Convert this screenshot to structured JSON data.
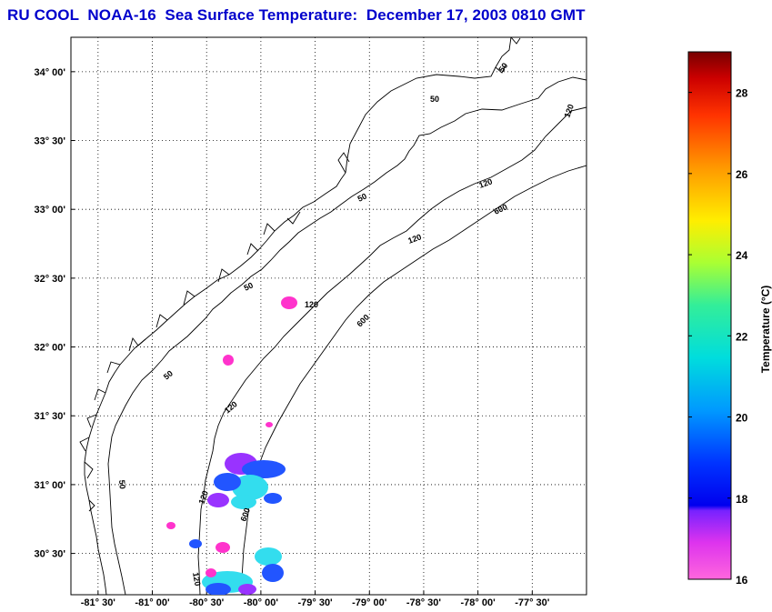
{
  "title": "RU COOL  NOAA-16  Sea Surface Temperature:  December 17, 2003 0810 GMT",
  "map": {
    "lon_range": [
      -81.75,
      -77
    ],
    "lat_range": [
      30.2,
      34.25
    ],
    "lon_ticks": [
      {
        "value": -81.5,
        "label": "-81° 30'"
      },
      {
        "value": -81.0,
        "label": "-81° 00'"
      },
      {
        "value": -80.5,
        "label": "-80° 30'"
      },
      {
        "value": -80.0,
        "label": "-80° 00'"
      },
      {
        "value": -79.5,
        "label": "-79° 30'"
      },
      {
        "value": -79.0,
        "label": "-79° 00'"
      },
      {
        "value": -78.5,
        "label": "-78° 30'"
      },
      {
        "value": -78.0,
        "label": "-78° 00'"
      },
      {
        "value": -77.5,
        "label": "-77° 30'"
      }
    ],
    "lat_ticks": [
      {
        "value": 34.0,
        "label": "34° 00'"
      },
      {
        "value": 33.5,
        "label": "33° 30'"
      },
      {
        "value": 33.0,
        "label": "33° 00'"
      },
      {
        "value": 32.5,
        "label": "32° 30'"
      },
      {
        "value": 32.0,
        "label": "32° 00'"
      },
      {
        "value": 31.5,
        "label": "31° 30'"
      },
      {
        "value": 31.0,
        "label": "31° 00'"
      },
      {
        "value": 30.5,
        "label": "30° 30'"
      }
    ],
    "contour_labels": [
      "50",
      "50",
      "50",
      "50",
      "50",
      "50",
      "120",
      "120",
      "120",
      "120",
      "120",
      "120",
      "120",
      "600",
      "600",
      "600"
    ]
  },
  "colorbar": {
    "label": "Temperature (°C)",
    "range": [
      16,
      29
    ],
    "ticks": [
      "16",
      "18",
      "20",
      "22",
      "24",
      "26",
      "28"
    ],
    "tick_values": [
      16,
      18,
      20,
      22,
      24,
      26,
      28
    ]
  },
  "colors": {
    "title": "#0000cc",
    "patch_magenta": "#ff33cc",
    "patch_purple": "#9933ff",
    "patch_blue": "#2255ff",
    "patch_cyan": "#33ddee"
  }
}
